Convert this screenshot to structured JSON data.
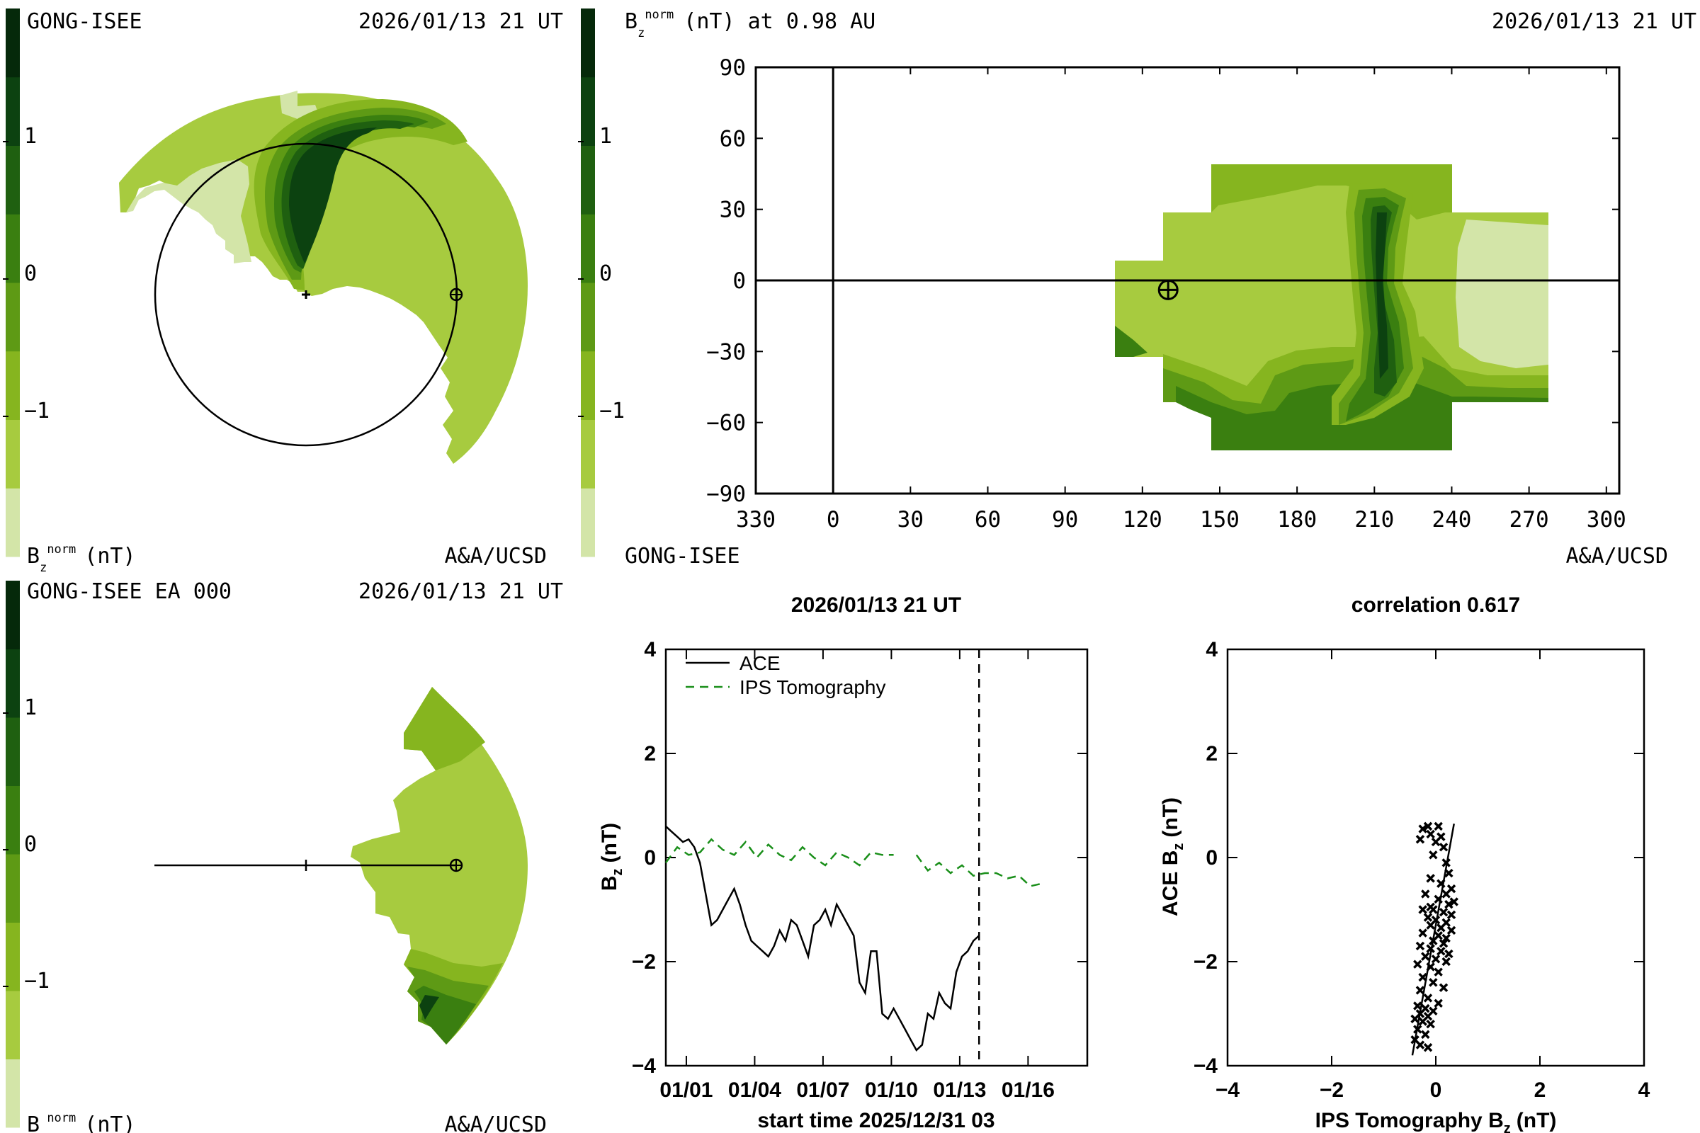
{
  "colors": {
    "levels": [
      "#d3e5a8",
      "#a7cb3f",
      "#86b51f",
      "#5e9a15",
      "#3a7f10",
      "#1f6010",
      "#0c4210",
      "#05290a"
    ],
    "axis": "#000000",
    "ace_line": "#000000",
    "ips_line": "#1a8f1a",
    "background": "#ffffff"
  },
  "colorbar": {
    "tick_labels": [
      "1",
      "0",
      "−1"
    ],
    "unit_label": "(nT)"
  },
  "panel_tl": {
    "left_label": "GONG-ISEE",
    "date_label": "2026/01/13 21 UT",
    "unit_label": "(nT)",
    "credit": "A&A/UCSD"
  },
  "panel_bl": {
    "left_label": "GONG-ISEE EA 000",
    "date_label": "2026/01/13 21 UT",
    "unit_label": "(nT)",
    "credit": "A&A/UCSD"
  },
  "panel_map": {
    "title_suffix": "(nT) at 0.98 AU",
    "date_label": "2026/01/13 21 UT",
    "left_label": "GONG-ISEE",
    "credit": "A&A/UCSD"
  },
  "chart_data": [
    {
      "type": "heatmap",
      "title": "(nT) at 0.98 AU",
      "x_tick_labels": [
        "330",
        "0",
        "30",
        "60",
        "90",
        "120",
        "150",
        "180",
        "210",
        "240",
        "270",
        "300"
      ],
      "y_tick_labels": [
        "90",
        "60",
        "30",
        "0",
        "−30",
        "−60",
        "−90"
      ],
      "xlim": [
        -30,
        305
      ],
      "ylim": [
        -90,
        90
      ],
      "earth_marker": {
        "x": 130,
        "y": -4
      },
      "legend": "colorbar, left"
    },
    {
      "type": "line",
      "title": "2026/01/13 21 UT",
      "xlabel": "start time 2025/12/31 03",
      "ylabel": "B",
      "ylabel_sub": "z",
      "ylabel_unit": "(nT)",
      "x_tick_labels": [
        "01/01",
        "01/04",
        "01/07",
        "01/10",
        "01/13",
        "01/16"
      ],
      "y_tick_labels": [
        "4",
        "2",
        "0",
        "−2",
        "−4"
      ],
      "xlim": [
        0,
        18.5
      ],
      "ylim": [
        -4,
        4
      ],
      "now_day": 13.75,
      "legend": "top-left",
      "series": [
        {
          "name": "ACE",
          "style": "solid",
          "x": [
            0.0,
            0.25,
            0.5,
            0.75,
            1.0,
            1.25,
            1.5,
            1.75,
            2.0,
            2.25,
            2.5,
            2.75,
            3.0,
            3.25,
            3.5,
            3.75,
            4.0,
            4.25,
            4.5,
            4.75,
            5.0,
            5.25,
            5.5,
            5.75,
            6.0,
            6.25,
            6.5,
            6.75,
            7.0,
            7.25,
            7.5,
            7.75,
            8.0,
            8.25,
            8.5,
            8.75,
            9.0,
            9.25,
            9.5,
            9.75,
            10.0,
            10.25,
            10.5,
            10.75,
            11.0,
            11.25,
            11.5,
            11.75,
            12.0,
            12.25,
            12.5,
            12.75,
            13.0,
            13.25,
            13.5,
            13.75
          ],
          "y": [
            0.6,
            0.5,
            0.4,
            0.3,
            0.35,
            0.2,
            -0.1,
            -0.7,
            -1.3,
            -1.2,
            -1.0,
            -0.8,
            -0.6,
            -0.9,
            -1.3,
            -1.6,
            -1.7,
            -1.8,
            -1.9,
            -1.7,
            -1.4,
            -1.6,
            -1.2,
            -1.3,
            -1.6,
            -1.9,
            -1.3,
            -1.2,
            -1.0,
            -1.3,
            -0.9,
            -1.1,
            -1.3,
            -1.5,
            -2.4,
            -2.6,
            -1.8,
            -1.8,
            -3.0,
            -3.1,
            -2.9,
            -3.1,
            -3.3,
            -3.5,
            -3.7,
            -3.6,
            -3.0,
            -3.1,
            -2.6,
            -2.8,
            -2.9,
            -2.2,
            -1.9,
            -1.8,
            -1.6,
            -1.5
          ]
        },
        {
          "name": "IPS Tomography",
          "style": "dashed",
          "x": [
            0.0,
            0.5,
            1.0,
            1.5,
            2.0,
            2.5,
            3.0,
            3.5,
            4.0,
            4.5,
            5.0,
            5.5,
            6.0,
            6.5,
            7.0,
            7.5,
            8.0,
            8.5,
            9.0,
            9.5,
            10.0,
            10.5,
            11.0,
            11.5,
            12.0,
            12.5,
            13.0,
            13.5,
            14.0,
            14.5,
            15.0,
            15.5,
            16.0,
            16.5
          ],
          "y": [
            -0.1,
            0.2,
            0.05,
            0.1,
            0.35,
            0.15,
            0.05,
            0.3,
            0.0,
            0.25,
            0.05,
            -0.05,
            0.2,
            0.0,
            -0.15,
            0.1,
            0.0,
            -0.15,
            0.1,
            0.05,
            0.05,
            null,
            0.05,
            -0.25,
            -0.1,
            -0.3,
            -0.15,
            -0.35,
            -0.3,
            -0.3,
            -0.4,
            -0.35,
            -0.55,
            -0.5
          ]
        }
      ]
    },
    {
      "type": "scatter",
      "title": "correlation 0.617",
      "xlabel": "IPS Tomography B",
      "xlabel_sub": "z",
      "xlabel_unit": "(nT)",
      "ylabel": "ACE B",
      "ylabel_sub": "z",
      "ylabel_unit": "(nT)",
      "x_tick_labels": [
        "−4",
        "−2",
        "0",
        "2",
        "4"
      ],
      "y_tick_labels": [
        "4",
        "2",
        "0",
        "−2",
        "−4"
      ],
      "xlim": [
        -4,
        4
      ],
      "ylim": [
        -4,
        4
      ],
      "fit": {
        "x": [
          -0.45,
          0.35
        ],
        "y": [
          -3.8,
          0.65
        ]
      },
      "points": [
        [
          -0.25,
          0.55
        ],
        [
          -0.15,
          0.6
        ],
        [
          0.05,
          0.6
        ],
        [
          -0.1,
          0.45
        ],
        [
          0.1,
          0.4
        ],
        [
          -0.3,
          0.35
        ],
        [
          0.0,
          0.3
        ],
        [
          0.15,
          0.2
        ],
        [
          -0.05,
          0.05
        ],
        [
          0.2,
          -0.1
        ],
        [
          0.25,
          -0.3
        ],
        [
          -0.1,
          -0.4
        ],
        [
          0.1,
          -0.5
        ],
        [
          0.3,
          -0.6
        ],
        [
          -0.2,
          -0.7
        ],
        [
          0.05,
          -0.8
        ],
        [
          0.25,
          -0.9
        ],
        [
          -0.05,
          -1.0
        ],
        [
          0.15,
          -1.05
        ],
        [
          0.3,
          -1.1
        ],
        [
          -0.15,
          -1.15
        ],
        [
          0.0,
          -1.2
        ],
        [
          0.2,
          -1.25
        ],
        [
          -0.1,
          -1.3
        ],
        [
          0.1,
          -1.35
        ],
        [
          0.3,
          -1.4
        ],
        [
          -0.25,
          -1.45
        ],
        [
          0.05,
          -1.5
        ],
        [
          0.2,
          -1.55
        ],
        [
          -0.05,
          -1.6
        ],
        [
          0.15,
          -1.65
        ],
        [
          -0.3,
          -1.7
        ],
        [
          -0.1,
          -1.75
        ],
        [
          0.1,
          -1.8
        ],
        [
          0.25,
          -1.85
        ],
        [
          -0.2,
          -1.9
        ],
        [
          0.0,
          -1.95
        ],
        [
          0.2,
          -2.0
        ],
        [
          -0.35,
          -2.05
        ],
        [
          -0.1,
          -2.1
        ],
        [
          0.05,
          -2.2
        ],
        [
          -0.25,
          -2.3
        ],
        [
          -0.05,
          -2.4
        ],
        [
          0.15,
          -2.5
        ],
        [
          -0.3,
          -2.55
        ],
        [
          -0.15,
          -2.7
        ],
        [
          0.05,
          -2.8
        ],
        [
          -0.35,
          -2.85
        ],
        [
          -0.2,
          -2.9
        ],
        [
          -0.05,
          -2.95
        ],
        [
          -0.3,
          -3.0
        ],
        [
          -0.15,
          -3.05
        ],
        [
          -0.4,
          -3.1
        ],
        [
          -0.25,
          -3.15
        ],
        [
          -0.1,
          -3.2
        ],
        [
          -0.35,
          -3.3
        ],
        [
          -0.2,
          -3.4
        ],
        [
          -0.3,
          -3.6
        ],
        [
          -0.15,
          -3.65
        ],
        [
          -0.4,
          -3.5
        ],
        [
          -0.25,
          -1.0
        ],
        [
          0.35,
          -0.85
        ],
        [
          -0.1,
          -0.95
        ],
        [
          0.2,
          -0.7
        ]
      ]
    }
  ]
}
